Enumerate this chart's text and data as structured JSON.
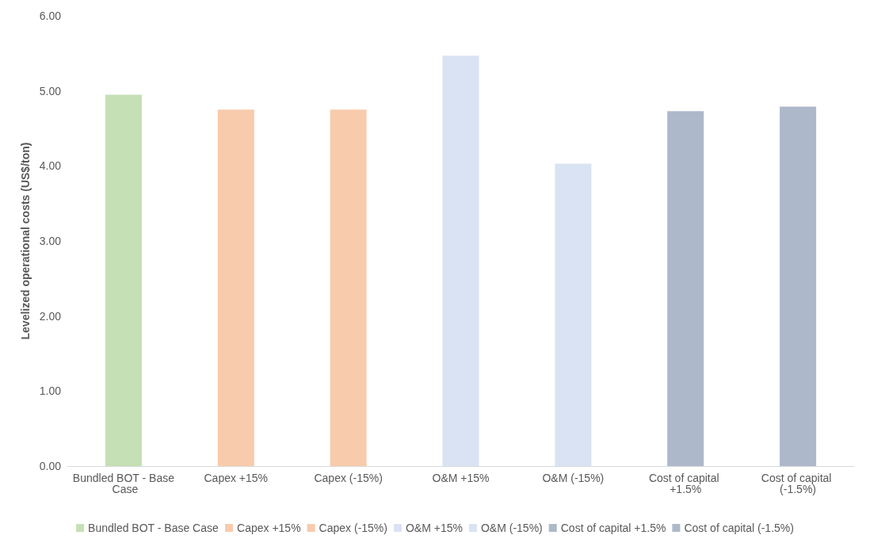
{
  "chart_data": {
    "type": "bar",
    "ylabel": "Levelized operational costs (US$/ton)",
    "categories": [
      "Bundled BOT - Base Case",
      "Capex +15%",
      "Capex (-15%)",
      "O&M +15%",
      "O&M (-15%)",
      "Cost of capital +1.5%",
      "Cost of capital (-1.5%)"
    ],
    "stacked": true,
    "legend": "bottom",
    "grid": false,
    "ylim": [
      0,
      6
    ],
    "yticks": [
      {
        "value": 0,
        "label": "0.00"
      },
      {
        "value": 1,
        "label": "1.00"
      },
      {
        "value": 2,
        "label": "2.00"
      },
      {
        "value": 3,
        "label": "3.00"
      },
      {
        "value": 4,
        "label": "4.00"
      },
      {
        "value": 5,
        "label": "5.00"
      },
      {
        "value": 6,
        "label": "6.00"
      }
    ],
    "series": [
      {
        "name": "Bundled BOT - Base Case",
        "color": "#c5e0b4",
        "values": [
          4.95,
          null,
          null,
          null,
          null,
          null,
          null
        ]
      },
      {
        "name": "Capex +15%",
        "color": "#f8cbad",
        "values": [
          null,
          4.75,
          null,
          null,
          null,
          null,
          null
        ]
      },
      {
        "name": "Capex (-15%)",
        "color": "#f8cbad",
        "values": [
          null,
          null,
          4.75,
          null,
          null,
          null,
          null
        ]
      },
      {
        "name": "O&M +15%",
        "color": "#dae3f3",
        "values": [
          null,
          null,
          null,
          5.47,
          null,
          null,
          null
        ]
      },
      {
        "name": "O&M (-15%)",
        "color": "#dae3f3",
        "values": [
          null,
          null,
          null,
          null,
          4.03,
          null,
          null
        ]
      },
      {
        "name": "Cost of capital +1.5%",
        "color": "#adb9ca",
        "values": [
          null,
          null,
          null,
          null,
          null,
          4.73,
          null
        ]
      },
      {
        "name": "Cost of capital (-1.5%)",
        "color": "#adb9ca",
        "values": [
          null,
          null,
          null,
          null,
          null,
          null,
          4.79
        ]
      }
    ]
  }
}
